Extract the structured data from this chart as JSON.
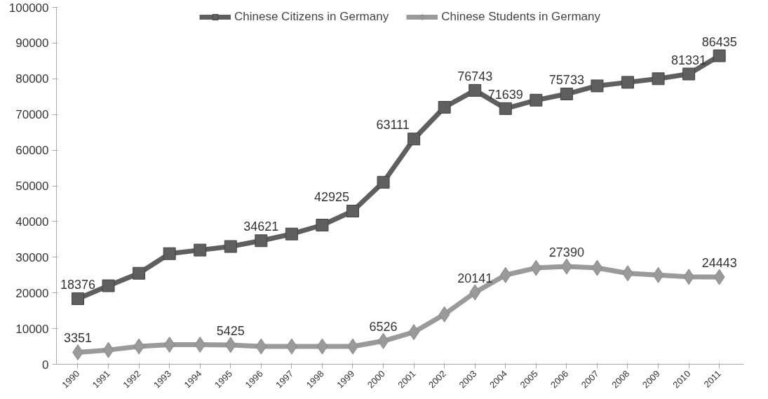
{
  "chart_data": {
    "type": "line",
    "categories": [
      "1990",
      "1991",
      "1992",
      "1993",
      "1994",
      "1995",
      "1996",
      "1997",
      "1998",
      "1999",
      "2000",
      "2001",
      "2002",
      "2003",
      "2004",
      "2005",
      "2006",
      "2007",
      "2008",
      "2009",
      "2010",
      "2011"
    ],
    "series": [
      {
        "name": "Chinese Citizens in Germany",
        "color": "#5f5f5f",
        "marker": "square",
        "values": [
          18376,
          22000,
          25500,
          31000,
          32000,
          33000,
          34621,
          36500,
          39000,
          42925,
          51000,
          63111,
          72000,
          76743,
          71639,
          74000,
          75733,
          78000,
          79000,
          80000,
          81331,
          86435
        ],
        "value_labels": [
          "18376",
          null,
          null,
          null,
          null,
          null,
          "34621",
          null,
          null,
          "42925",
          null,
          "63111",
          null,
          "76743",
          "71639",
          null,
          "75733",
          null,
          null,
          null,
          "81331",
          "86435"
        ]
      },
      {
        "name": "Chinese Students in Germany",
        "color": "#9a9a9a",
        "marker": "diamond",
        "values": [
          3351,
          4000,
          5000,
          5500,
          5500,
          5425,
          5000,
          5000,
          5000,
          5000,
          6526,
          9000,
          14000,
          20141,
          25000,
          27000,
          27390,
          27000,
          25500,
          25000,
          24500,
          24443
        ],
        "value_labels": [
          "3351",
          null,
          null,
          null,
          null,
          "5425",
          null,
          null,
          null,
          null,
          "6526",
          null,
          null,
          "20141",
          null,
          null,
          "27390",
          null,
          null,
          null,
          null,
          "24443"
        ]
      }
    ],
    "ylim": [
      0,
      100000
    ],
    "yticks": [
      0,
      10000,
      20000,
      30000,
      40000,
      50000,
      60000,
      70000,
      80000,
      90000,
      100000
    ],
    "grid": false,
    "legend": "top",
    "line_style": "solid"
  }
}
